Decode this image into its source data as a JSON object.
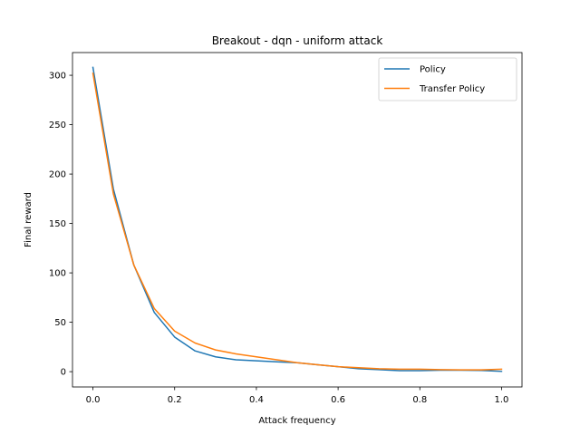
{
  "chart_data": {
    "type": "line",
    "title": "Breakout - dqn - uniform attack",
    "xlabel": "Attack frequency",
    "ylabel": "Final reward",
    "xlim": [
      -0.05,
      1.05
    ],
    "ylim": [
      -15.5,
      323
    ],
    "xticks": [
      0.0,
      0.2,
      0.4,
      0.6,
      0.8,
      1.0
    ],
    "xtick_labels": [
      "0.0",
      "0.2",
      "0.4",
      "0.6",
      "0.8",
      "1.0"
    ],
    "yticks": [
      0,
      50,
      100,
      150,
      200,
      250,
      300
    ],
    "ytick_labels": [
      "0",
      "50",
      "100",
      "150",
      "200",
      "250",
      "300"
    ],
    "grid": false,
    "legend_position": "upper-right",
    "series": [
      {
        "name": "Policy",
        "color": "#1f77b4",
        "x": [
          0.0,
          0.05,
          0.1,
          0.15,
          0.2,
          0.25,
          0.3,
          0.35,
          0.4,
          0.45,
          0.5,
          0.55,
          0.6,
          0.65,
          0.7,
          0.75,
          0.8,
          0.85,
          0.9,
          0.95,
          1.0
        ],
        "y": [
          308,
          185,
          108,
          60,
          35,
          21,
          15,
          12,
          11,
          10,
          9,
          7,
          5,
          3,
          2,
          1,
          1,
          1.5,
          1.5,
          1.2,
          0.3
        ]
      },
      {
        "name": "Transfer Policy",
        "color": "#ff7f0e",
        "x": [
          0.0,
          0.05,
          0.1,
          0.15,
          0.2,
          0.25,
          0.3,
          0.35,
          0.4,
          0.45,
          0.5,
          0.55,
          0.6,
          0.65,
          0.7,
          0.75,
          0.8,
          0.85,
          0.9,
          0.95,
          1.0
        ],
        "y": [
          302,
          180,
          108,
          64,
          41,
          29,
          22,
          18,
          15,
          12,
          9,
          7,
          5,
          4,
          3,
          2.5,
          2.5,
          2,
          1.8,
          1.8,
          2.5
        ]
      }
    ]
  }
}
